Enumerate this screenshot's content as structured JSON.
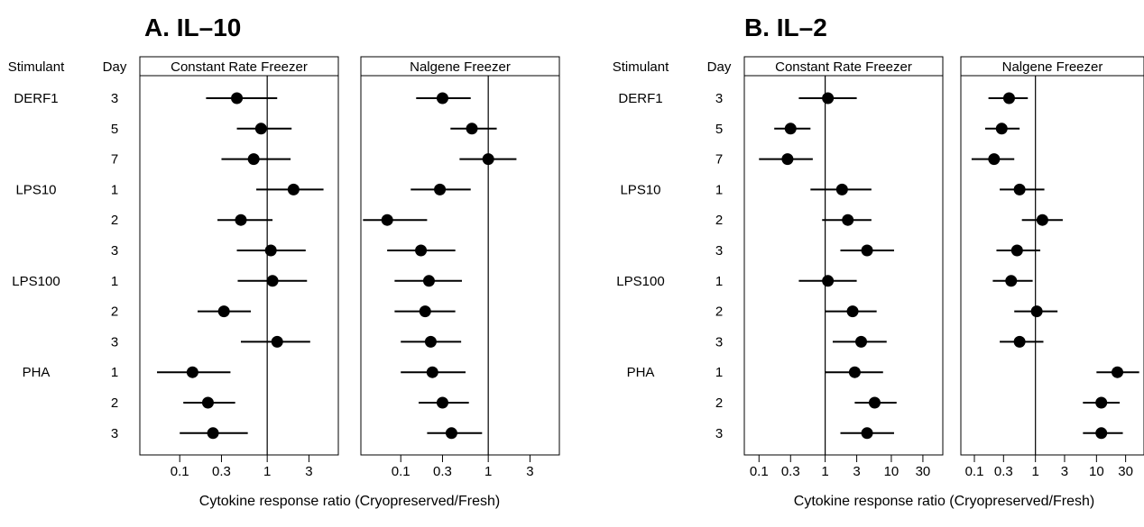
{
  "chart_data": [
    {
      "type": "scatter",
      "title": "A. IL–10",
      "header_stimulant": "Stimulant",
      "header_day": "Day",
      "xlabel": "Cytokine response ratio (Cryopreserved/Fresh)",
      "x_scale": "log",
      "xlim": [
        0.035,
        6.5
      ],
      "xticks": [
        0.1,
        0.3,
        1,
        3
      ],
      "xtick_labels": [
        "0.1",
        "0.3",
        "1",
        "3"
      ],
      "reference_line": 1,
      "rows": [
        {
          "stimulant": "DERF1",
          "day": "3"
        },
        {
          "stimulant": "",
          "day": "5"
        },
        {
          "stimulant": "",
          "day": "7"
        },
        {
          "stimulant": "LPS10",
          "day": "1"
        },
        {
          "stimulant": "",
          "day": "2"
        },
        {
          "stimulant": "",
          "day": "3"
        },
        {
          "stimulant": "LPS100",
          "day": "1"
        },
        {
          "stimulant": "",
          "day": "2"
        },
        {
          "stimulant": "",
          "day": "3"
        },
        {
          "stimulant": "PHA",
          "day": "1"
        },
        {
          "stimulant": "",
          "day": "2"
        },
        {
          "stimulant": "",
          "day": "3"
        }
      ],
      "panels": [
        {
          "strip": "Constant Rate Freezer",
          "estimates": [
            0.45,
            0.85,
            0.7,
            2.0,
            0.5,
            1.1,
            1.15,
            0.32,
            1.3,
            0.14,
            0.21,
            0.24
          ],
          "lower": [
            0.2,
            0.45,
            0.3,
            0.75,
            0.27,
            0.45,
            0.46,
            0.16,
            0.5,
            0.055,
            0.11,
            0.1
          ],
          "upper": [
            1.3,
            1.9,
            1.85,
            4.4,
            1.15,
            2.75,
            2.85,
            0.65,
            3.1,
            0.38,
            0.43,
            0.6
          ]
        },
        {
          "strip": "Nalgene Freezer",
          "estimates": [
            0.3,
            0.65,
            1.0,
            0.28,
            0.07,
            0.17,
            0.21,
            0.19,
            0.22,
            0.23,
            0.3,
            0.38
          ],
          "lower": [
            0.15,
            0.37,
            0.47,
            0.13,
            0.037,
            0.07,
            0.085,
            0.085,
            0.1,
            0.1,
            0.16,
            0.2
          ],
          "upper": [
            0.63,
            1.25,
            2.1,
            0.63,
            0.2,
            0.42,
            0.5,
            0.42,
            0.49,
            0.55,
            0.6,
            0.85
          ]
        }
      ]
    },
    {
      "type": "scatter",
      "title": "B. IL–2",
      "header_stimulant": "Stimulant",
      "header_day": "Day",
      "xlabel": "Cytokine response ratio (Cryopreserved/Fresh)",
      "x_scale": "log",
      "xlim": [
        0.06,
        60
      ],
      "xticks": [
        0.1,
        0.3,
        1,
        3,
        10,
        30
      ],
      "xtick_labels": [
        "0.1",
        "0.3",
        "1",
        "3",
        "10",
        "30"
      ],
      "reference_line": 1,
      "rows": [
        {
          "stimulant": "DERF1",
          "day": "3"
        },
        {
          "stimulant": "",
          "day": "5"
        },
        {
          "stimulant": "",
          "day": "7"
        },
        {
          "stimulant": "LPS10",
          "day": "1"
        },
        {
          "stimulant": "",
          "day": "2"
        },
        {
          "stimulant": "",
          "day": "3"
        },
        {
          "stimulant": "LPS100",
          "day": "1"
        },
        {
          "stimulant": "",
          "day": "2"
        },
        {
          "stimulant": "",
          "day": "3"
        },
        {
          "stimulant": "PHA",
          "day": "1"
        },
        {
          "stimulant": "",
          "day": "2"
        },
        {
          "stimulant": "",
          "day": "3"
        }
      ],
      "panels": [
        {
          "strip": "Constant Rate Freezer",
          "estimates": [
            1.1,
            0.3,
            0.27,
            1.8,
            2.2,
            4.3,
            1.1,
            2.6,
            3.5,
            2.8,
            5.6,
            4.3
          ],
          "lower": [
            0.4,
            0.17,
            0.1,
            0.6,
            0.9,
            1.7,
            0.4,
            1.0,
            1.3,
            1.0,
            2.8,
            1.7
          ],
          "upper": [
            3.0,
            0.6,
            0.65,
            5.0,
            5.0,
            11.0,
            3.0,
            6.0,
            8.5,
            7.5,
            12.0,
            11.0
          ]
        },
        {
          "strip": "Nalgene Freezer",
          "estimates": [
            0.37,
            0.28,
            0.21,
            0.55,
            1.3,
            0.5,
            0.4,
            1.05,
            0.55,
            22,
            12,
            12
          ],
          "lower": [
            0.17,
            0.15,
            0.09,
            0.26,
            0.6,
            0.23,
            0.2,
            0.45,
            0.26,
            10,
            6,
            6
          ],
          "upper": [
            0.75,
            0.55,
            0.45,
            1.4,
            2.8,
            1.2,
            0.9,
            2.3,
            1.35,
            50,
            24,
            27
          ]
        }
      ]
    }
  ]
}
